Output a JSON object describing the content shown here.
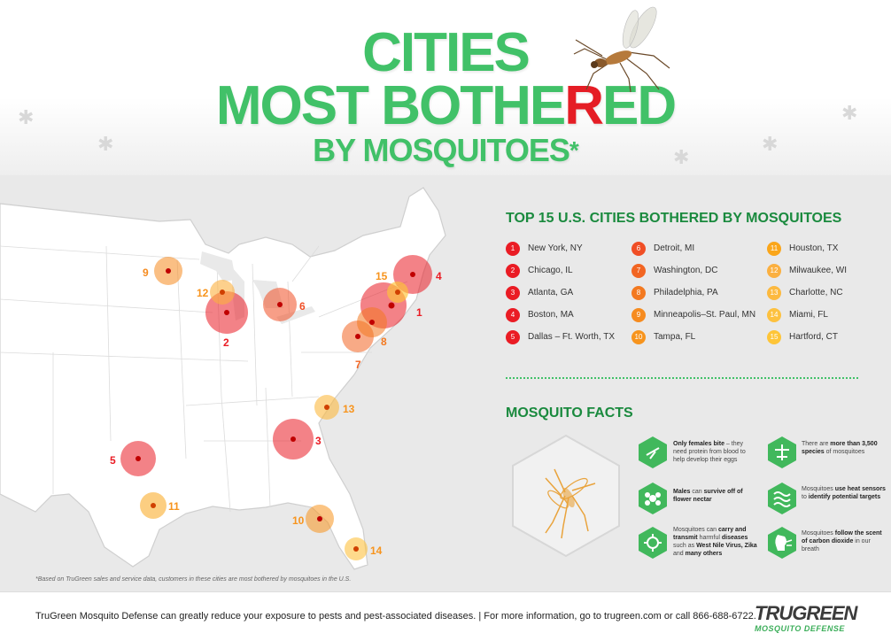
{
  "title": {
    "line1": "CITIES",
    "line2_part1": "MOST BOTHE",
    "line2_red": "R",
    "line2_part2": "ED",
    "line3": "BY MOSQUITOES",
    "line3_mark": "*"
  },
  "colors": {
    "title_green": "#41c168",
    "accent_red": "#e51d25",
    "heading_green": "#1a8a3e",
    "map_bg": "#e9e9e9",
    "land": "#ffffff",
    "rank_colors": [
      "#ea1c24",
      "#ea1c24",
      "#ea1c24",
      "#ea1c24",
      "#ea1c24",
      "#f04e25",
      "#f26522",
      "#f37920",
      "#f68b1f",
      "#f7941d",
      "#faa61a",
      "#fbb040",
      "#fcb93f",
      "#fdc13f",
      "#fec538"
    ]
  },
  "legend": {
    "heading": "TOP 15 U.S. CITIES BOTHERED BY MOSQUITOES",
    "cities": [
      {
        "rank": "1",
        "name": "New York, NY"
      },
      {
        "rank": "2",
        "name": "Chicago, IL"
      },
      {
        "rank": "3",
        "name": "Atlanta, GA"
      },
      {
        "rank": "4",
        "name": "Boston, MA"
      },
      {
        "rank": "5",
        "name": "Dallas – Ft. Worth, TX"
      },
      {
        "rank": "6",
        "name": "Detroit, MI"
      },
      {
        "rank": "7",
        "name": "Washington, DC"
      },
      {
        "rank": "8",
        "name": "Philadelphia, PA"
      },
      {
        "rank": "9",
        "name": "Minneapolis–St. Paul, MN"
      },
      {
        "rank": "10",
        "name": "Tampa, FL"
      },
      {
        "rank": "11",
        "name": "Houston, TX"
      },
      {
        "rank": "12",
        "name": "Milwaukee, WI"
      },
      {
        "rank": "13",
        "name": "Charlotte, NC"
      },
      {
        "rank": "14",
        "name": "Miami, FL"
      },
      {
        "rank": "15",
        "name": "Hartford, CT"
      }
    ]
  },
  "facts": {
    "heading": "MOSQUITO FACTS",
    "items": [
      {
        "icon": "female-mosquito-biting-icon",
        "bold": "Only females bite",
        "text": " – they need protein from blood to help develop their eggs"
      },
      {
        "icon": "species-count-icon",
        "pre": "There are ",
        "bold": "more than 3,500 species",
        "text": " of mosquitoes"
      },
      {
        "icon": "flower-nectar-icon",
        "bold": "Males",
        "text": " can ",
        "bold2": "survive off of flower nectar"
      },
      {
        "icon": "heat-waves-icon",
        "pre": "Mosquitoes ",
        "bold": "use heat sensors",
        "text": " to ",
        "bold2": "identify potential targets"
      },
      {
        "icon": "disease-virus-icon",
        "pre": "Mosquitoes can ",
        "bold": "carry and transmit",
        "text": " harmful ",
        "bold2": "diseases",
        "text2": " such as ",
        "bold3": "West Nile Virus, Zika",
        "text3": " and ",
        "bold4": "many others"
      },
      {
        "icon": "breath-carbon-dioxide-icon",
        "pre": "Mosquitoes ",
        "bold": "follow the scent of carbon dioxide",
        "text": " in our breath"
      }
    ]
  },
  "footnote": "*Based on TruGreen sales and service data, customers in these cities are most bothered by mosquitoes in the U.S.",
  "footer": {
    "text": "TruGreen Mosquito Defense can greatly reduce your exposure to pests and pest-associated diseases.  |  For more information, go to trugreen.com or call 866-688-6722.",
    "logo_main": "TRUGREEN",
    "logo_sub": "MOSQUITO DEFENSE"
  }
}
